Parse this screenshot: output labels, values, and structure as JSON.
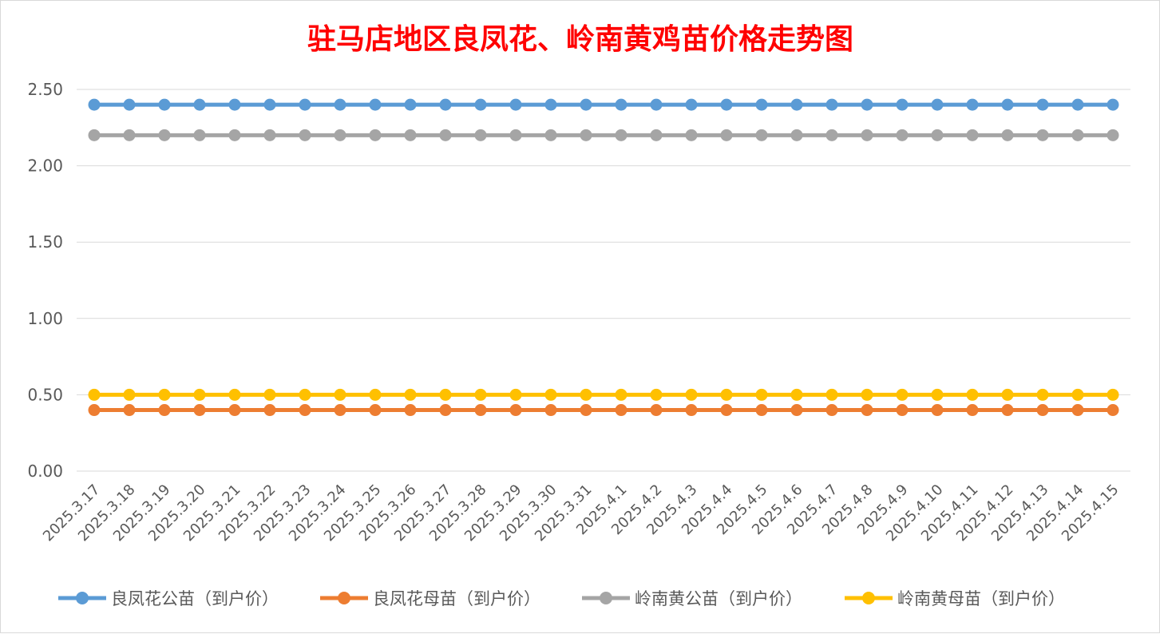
{
  "chart_data": {
    "type": "line",
    "title": "驻马店地区良凤花、岭南黄鸡苗价格走势图",
    "title_color": "#ff0000",
    "xlabel": "",
    "ylabel": "",
    "ylim": [
      0,
      2.5
    ],
    "y_ticks": [
      "0.00",
      "0.50",
      "1.00",
      "1.50",
      "2.00",
      "2.50"
    ],
    "grid": "horizontal",
    "legend_position": "bottom",
    "categories": [
      "2025.3.17",
      "2025.3.18",
      "2025.3.19",
      "2025.3.20",
      "2025.3.21",
      "2025.3.22",
      "2025.3.23",
      "2025.3.24",
      "2025.3.25",
      "2025.3.26",
      "2025.3.27",
      "2025.3.28",
      "2025.3.29",
      "2025.3.30",
      "2025.3.31",
      "2025.4.1",
      "2025.4.2",
      "2025.4.3",
      "2025.4.4",
      "2025.4.5",
      "2025.4.6",
      "2025.4.7",
      "2025.4.8",
      "2025.4.9",
      "2025.4.10",
      "2025.4.11",
      "2025.4.12",
      "2025.4.13",
      "2025.4.14",
      "2025.4.15"
    ],
    "series": [
      {
        "name": "良凤花公苗（到户价）",
        "color": "#5b9bd5",
        "values": [
          2.4,
          2.4,
          2.4,
          2.4,
          2.4,
          2.4,
          2.4,
          2.4,
          2.4,
          2.4,
          2.4,
          2.4,
          2.4,
          2.4,
          2.4,
          2.4,
          2.4,
          2.4,
          2.4,
          2.4,
          2.4,
          2.4,
          2.4,
          2.4,
          2.4,
          2.4,
          2.4,
          2.4,
          2.4,
          2.4
        ]
      },
      {
        "name": "良凤花母苗（到户价）",
        "color": "#ed7d31",
        "values": [
          0.4,
          0.4,
          0.4,
          0.4,
          0.4,
          0.4,
          0.4,
          0.4,
          0.4,
          0.4,
          0.4,
          0.4,
          0.4,
          0.4,
          0.4,
          0.4,
          0.4,
          0.4,
          0.4,
          0.4,
          0.4,
          0.4,
          0.4,
          0.4,
          0.4,
          0.4,
          0.4,
          0.4,
          0.4,
          0.4
        ]
      },
      {
        "name": "岭南黄公苗（到户价）",
        "color": "#a5a5a5",
        "values": [
          2.2,
          2.2,
          2.2,
          2.2,
          2.2,
          2.2,
          2.2,
          2.2,
          2.2,
          2.2,
          2.2,
          2.2,
          2.2,
          2.2,
          2.2,
          2.2,
          2.2,
          2.2,
          2.2,
          2.2,
          2.2,
          2.2,
          2.2,
          2.2,
          2.2,
          2.2,
          2.2,
          2.2,
          2.2,
          2.2
        ]
      },
      {
        "name": "岭南黄母苗（到户价）",
        "color": "#ffc000",
        "values": [
          0.5,
          0.5,
          0.5,
          0.5,
          0.5,
          0.5,
          0.5,
          0.5,
          0.5,
          0.5,
          0.5,
          0.5,
          0.5,
          0.5,
          0.5,
          0.5,
          0.5,
          0.5,
          0.5,
          0.5,
          0.5,
          0.5,
          0.5,
          0.5,
          0.5,
          0.5,
          0.5,
          0.5,
          0.5,
          0.5
        ]
      }
    ]
  }
}
